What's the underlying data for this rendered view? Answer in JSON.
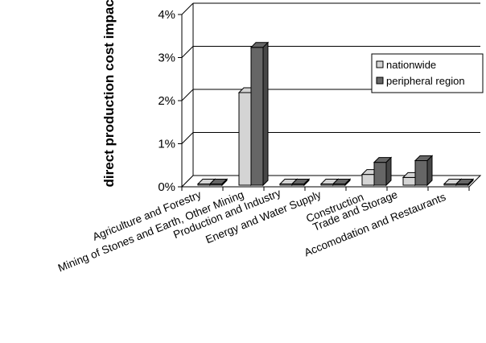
{
  "chart_data": {
    "type": "bar",
    "ylabel": "direct production cost impact",
    "ylim": [
      0,
      0.04
    ],
    "yticks": [
      "0%",
      "1%",
      "2%",
      "3%",
      "4%"
    ],
    "grid": true,
    "legend_position": "right",
    "categories": [
      "Agriculture and Forestry",
      "Mining of Stones and Earth, Other Mining",
      "Production and Industry",
      "Energy and Water Supply",
      "Construction",
      "Trade and Storage",
      "Accomodation and Restaurants"
    ],
    "series": [
      {
        "name": "nationwide",
        "color": "#d4d4d4",
        "values": [
          0.0,
          0.0215,
          0.0,
          0.0,
          0.0025,
          0.0018,
          0.0
        ]
      },
      {
        "name": "peripheral region",
        "color": "#666666",
        "values": [
          0.0,
          0.032,
          0.0,
          0.0,
          0.0053,
          0.0057,
          0.0
        ]
      }
    ]
  }
}
